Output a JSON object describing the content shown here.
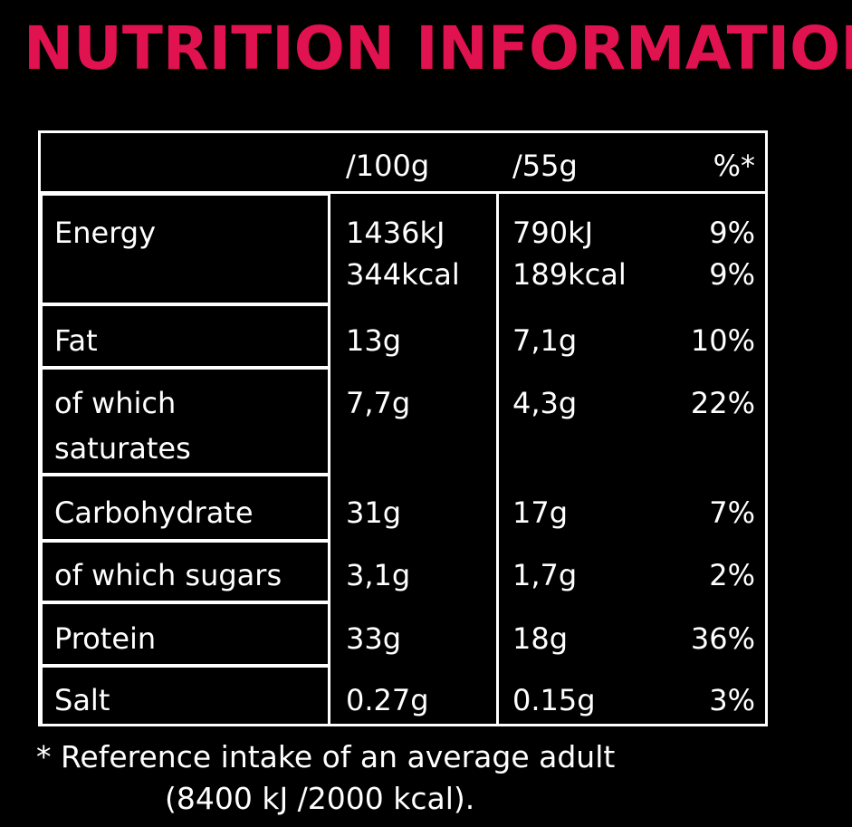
{
  "title": "NUTRITION INFORMATION",
  "header": {
    "col1": "/100g",
    "col2": "/55g",
    "col3": "%*"
  },
  "rows": [
    {
      "label": "Energy",
      "per100": "1436kJ",
      "per55": "790kJ",
      "pct": "9%",
      "per100_b": "344kcal",
      "per55_b": "189kcal",
      "pct_b": "9%"
    },
    {
      "label": "Fat",
      "per100": "13g",
      "per55": "7,1g",
      "pct": "10%"
    },
    {
      "label": "of which",
      "label_b": "saturates",
      "per100": "7,7g",
      "per55": "4,3g",
      "pct": "22%"
    },
    {
      "label": "Carbohydrate",
      "per100": "31g",
      "per55": "17g",
      "pct": "7%"
    },
    {
      "label": "of which sugars",
      "per100": "3,1g",
      "per55": "1,7g",
      "pct": "2%"
    },
    {
      "label": "Protein",
      "per100": "33g",
      "per55": "18g",
      "pct": "36%"
    },
    {
      "label": "Salt",
      "per100": "0.27g",
      "per55": "0.15g",
      "pct": "3%"
    }
  ],
  "footnote": {
    "line1": "* Reference intake of an average adult",
    "line2": "(8400 kJ /2000 kcal)."
  },
  "colors": {
    "title": "#e0124f",
    "background": "#000000",
    "text": "#ffffff"
  }
}
